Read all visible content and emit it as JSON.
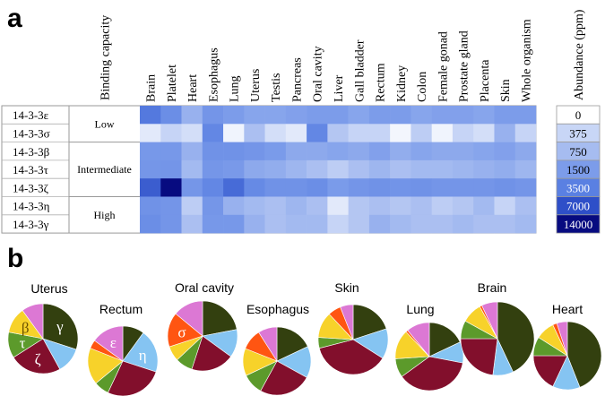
{
  "panels": {
    "a": "a",
    "b": "b"
  },
  "chart_data": [
    {
      "type": "heatmap",
      "panel": "a",
      "title": "",
      "row_header": "Binding capacity",
      "rows": [
        "14-3-3ε",
        "14-3-3σ",
        "14-3-3β",
        "14-3-3τ",
        "14-3-3ζ",
        "14-3-3η",
        "14-3-3γ"
      ],
      "groups": [
        {
          "label": "Low",
          "rows": 2
        },
        {
          "label": "Intermediate",
          "rows": 3
        },
        {
          "label": "High",
          "rows": 2
        }
      ],
      "columns": [
        "Brain",
        "Platelet",
        "Heart",
        "Esophagus",
        "Lung",
        "Uterus",
        "Testis",
        "Pancreas",
        "Oral cavity",
        "Liver",
        "Gall bladder",
        "Rectum",
        "Kidney",
        "Colon",
        "Female gonad",
        "Prostate gland",
        "Placenta",
        "Skin",
        "Whole organism"
      ],
      "values_ppm": [
        [
          4000,
          2500,
          1000,
          2000,
          1500,
          1300,
          1300,
          1400,
          1500,
          1500,
          1300,
          1500,
          1500,
          1300,
          1400,
          1400,
          1300,
          1500,
          1500
        ],
        [
          200,
          400,
          300,
          3000,
          100,
          700,
          300,
          200,
          3000,
          600,
          400,
          400,
          80,
          500,
          100,
          400,
          300,
          1000,
          400
        ],
        [
          1800,
          1800,
          1000,
          2200,
          2200,
          2000,
          1600,
          1200,
          1200,
          1300,
          1200,
          1400,
          1100,
          1300,
          1200,
          1200,
          1300,
          1400,
          1200
        ],
        [
          1900,
          2000,
          800,
          1900,
          1700,
          1200,
          1100,
          900,
          700,
          500,
          700,
          900,
          700,
          800,
          800,
          900,
          1000,
          1100,
          900
        ],
        [
          6000,
          14000,
          1900,
          3000,
          5000,
          2800,
          2200,
          2200,
          2500,
          1600,
          2000,
          2200,
          2100,
          2200,
          2000,
          2000,
          2000,
          2200,
          2000
        ],
        [
          2200,
          2000,
          500,
          1900,
          1000,
          800,
          700,
          900,
          700,
          200,
          600,
          700,
          600,
          700,
          500,
          600,
          800,
          400,
          700
        ],
        [
          2500,
          2000,
          700,
          1800,
          1800,
          1000,
          700,
          800,
          800,
          400,
          600,
          1000,
          800,
          700,
          700,
          800,
          700,
          700,
          800
        ]
      ],
      "legend": {
        "title": "Abundance (ppm)",
        "levels": [
          0,
          375,
          750,
          1500,
          3500,
          7000,
          14000
        ],
        "labels": [
          "0",
          "375",
          "750",
          "1500",
          "3500",
          "7000",
          "14000"
        ],
        "colors": [
          "#ffffff",
          "#c8d6f6",
          "#a6bcf0",
          "#7c9cea",
          "#5a80e2",
          "#2e4fc8",
          "#070b80"
        ]
      }
    },
    {
      "type": "pie",
      "panel": "b",
      "slice_order": [
        "γ",
        "η",
        "ζ",
        "τ",
        "β",
        "σ",
        "ε"
      ],
      "colors": {
        "γ": "#33400f",
        "η": "#85c4f2",
        "ζ": "#820f2c",
        "τ": "#5c9a2b",
        "β": "#f7d22a",
        "σ": "#ff5512",
        "ε": "#dc78d4"
      },
      "charts": [
        {
          "name": "Uterus",
          "values": [
            30,
            12,
            24,
            12,
            12,
            0,
            10
          ],
          "labels": {
            "γ": "γ",
            "ζ": "ζ",
            "τ": "τ",
            "β": "β"
          }
        },
        {
          "name": "Rectum",
          "values": [
            10,
            20,
            27,
            7,
            17,
            4,
            15
          ],
          "labels": {
            "ε": "ε",
            "η": "η"
          }
        },
        {
          "name": "Oral cavity",
          "values": [
            22,
            13,
            20,
            8,
            7,
            16,
            14
          ],
          "labels": {
            "σ": "σ"
          }
        },
        {
          "name": "Esophagus",
          "values": [
            18,
            15,
            25,
            10,
            13,
            10,
            9
          ],
          "labels": {}
        },
        {
          "name": "Skin",
          "values": [
            20,
            14,
            37,
            5,
            12,
            6,
            6
          ],
          "labels": {}
        },
        {
          "name": "Lung",
          "values": [
            18,
            10,
            37,
            9,
            14,
            1,
            11
          ],
          "labels": {}
        },
        {
          "name": "Brain",
          "values": [
            43,
            9,
            23,
            8,
            9,
            1,
            7
          ],
          "labels": {}
        },
        {
          "name": "Heart",
          "values": [
            44,
            13,
            18,
            9,
            9,
            2,
            5
          ],
          "labels": {}
        }
      ]
    }
  ]
}
